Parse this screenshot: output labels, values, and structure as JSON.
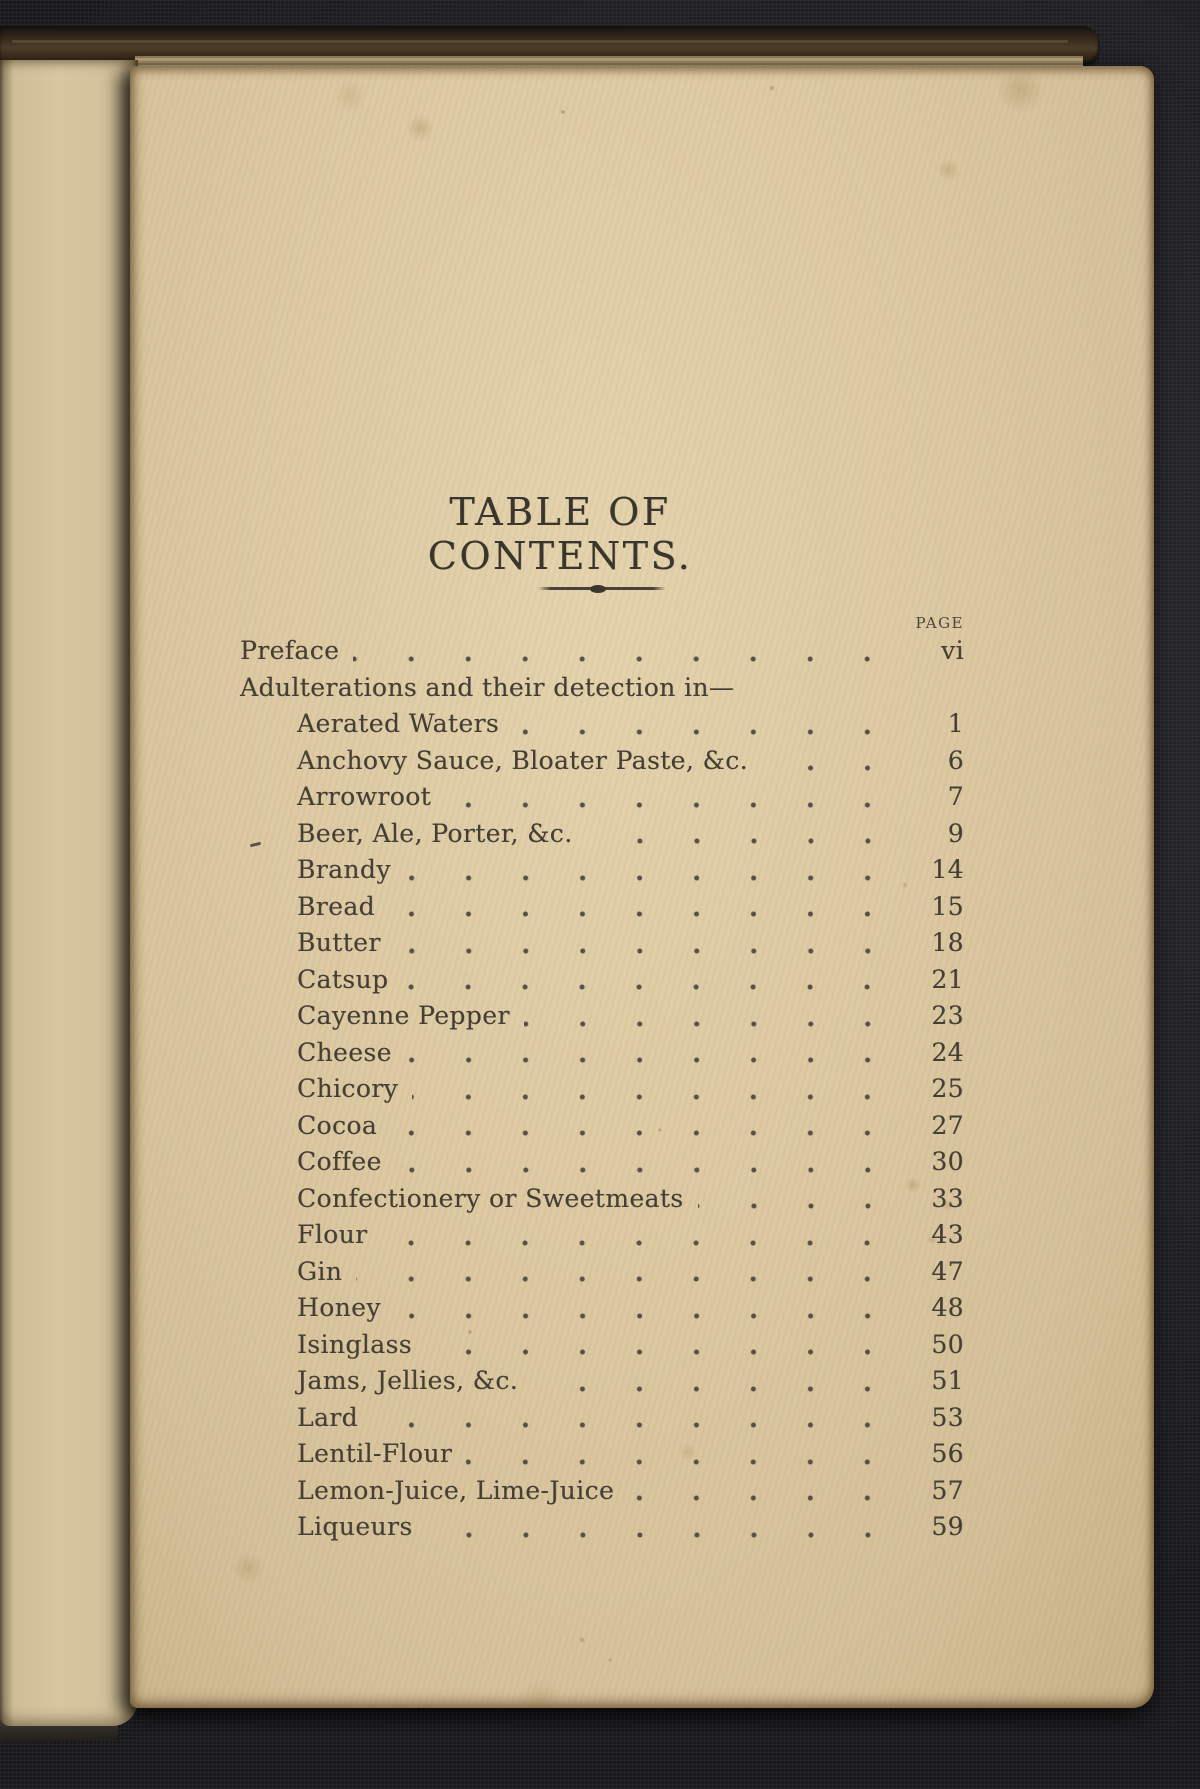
{
  "page": {
    "title": "TABLE OF CONTENTS.",
    "column_header": "PAGE",
    "preface": {
      "label": "Preface",
      "page": "vi"
    },
    "section_heading": "Adulterations and their detection in—",
    "entries": [
      {
        "label": "Aerated Waters",
        "page": "1"
      },
      {
        "label": "Anchovy Sauce, Bloater Paste, &c.",
        "page": "6"
      },
      {
        "label": "Arrowroot",
        "page": "7"
      },
      {
        "label": "Beer, Ale, Porter, &c.",
        "page": "9"
      },
      {
        "label": "Brandy",
        "page": "14"
      },
      {
        "label": "Bread",
        "page": "15"
      },
      {
        "label": "Butter",
        "page": "18"
      },
      {
        "label": "Catsup",
        "page": "21"
      },
      {
        "label": "Cayenne Pepper",
        "page": "23"
      },
      {
        "label": "Cheese",
        "page": "24"
      },
      {
        "label": "Chicory",
        "page": "25"
      },
      {
        "label": "Cocoa",
        "page": "27"
      },
      {
        "label": "Coffee",
        "page": "30"
      },
      {
        "label": "Confectionery or Sweetmeats",
        "page": "33"
      },
      {
        "label": "Flour",
        "page": "43"
      },
      {
        "label": "Gin",
        "page": "47"
      },
      {
        "label": "Honey",
        "page": "48"
      },
      {
        "label": "Isinglass",
        "page": "50"
      },
      {
        "label": "Jams, Jellies, &c.",
        "page": "51"
      },
      {
        "label": "Lard",
        "page": "53"
      },
      {
        "label": "Lentil-Flour",
        "page": "56"
      },
      {
        "label": "Lemon-Juice, Lime-Juice",
        "page": "57"
      },
      {
        "label": "Liqueurs",
        "page": "59"
      }
    ]
  },
  "colors": {
    "paper": "#dcc9a2",
    "ink": "#443e34",
    "cover_cloth": "#1e1e21",
    "spine_leather": "#4d3c28"
  }
}
